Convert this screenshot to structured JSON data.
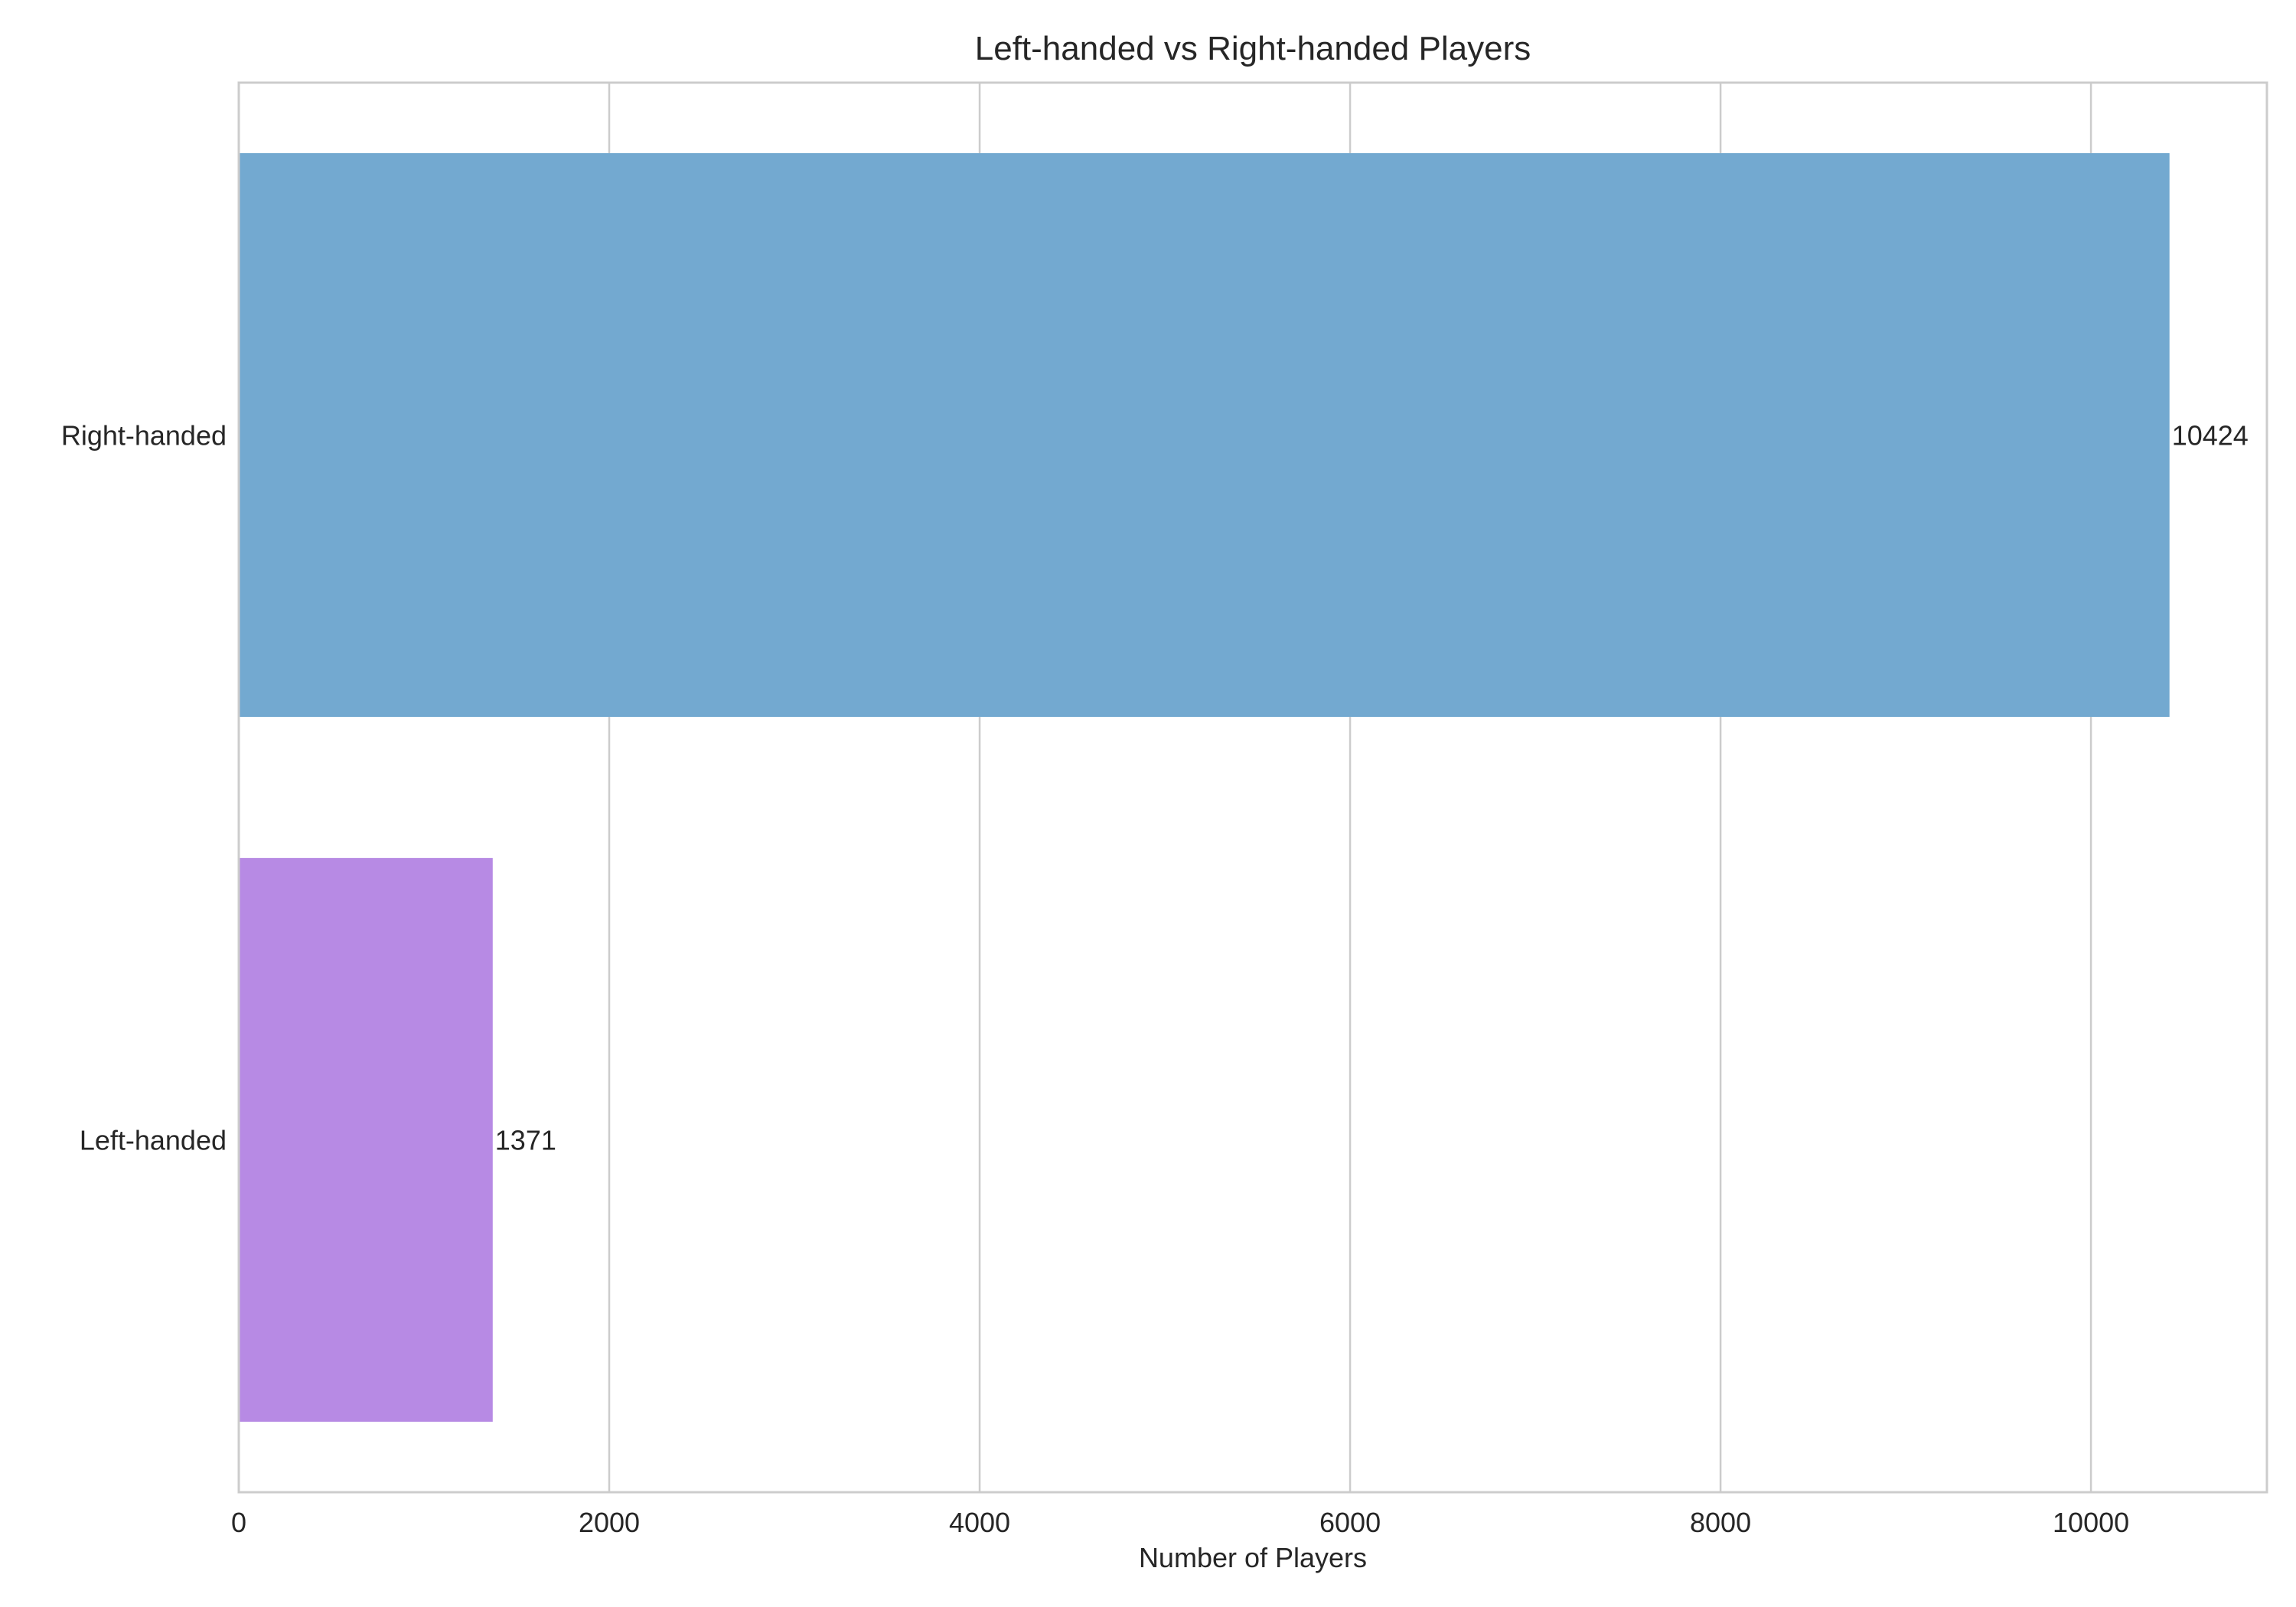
{
  "chart_data": {
    "type": "bar",
    "orientation": "horizontal",
    "title": "Left-handed vs Right-handed Players",
    "xlabel": "Number of Players",
    "ylabel": "",
    "categories": [
      "Right-handed",
      "Left-handed"
    ],
    "values": [
      10424,
      1371
    ],
    "data_labels": [
      "10424",
      "1371"
    ],
    "colors": [
      "#73a9d0",
      "#b78ae4"
    ],
    "xlim": [
      0,
      10950
    ],
    "xticks": [
      0,
      2000,
      4000,
      6000,
      8000,
      10000
    ],
    "xtick_labels": [
      "0",
      "2000",
      "4000",
      "6000",
      "8000",
      "10000"
    ],
    "grid": true,
    "grid_color": "#cccccc"
  }
}
